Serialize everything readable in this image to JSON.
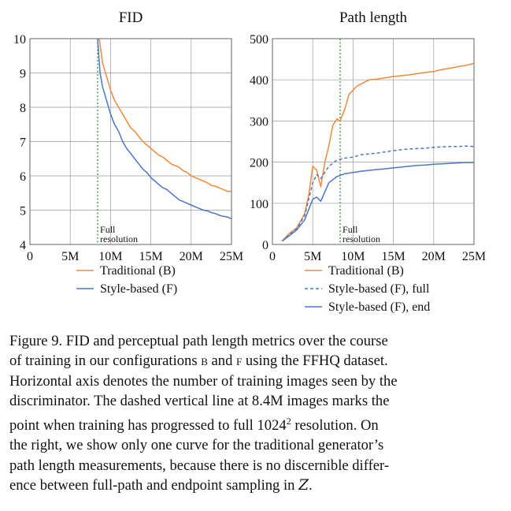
{
  "colors": {
    "traditional": "#ef8a3c",
    "style": "#4a76c9",
    "marker": "#3a9a4a",
    "grid": "#9a9a9a"
  },
  "chart_data": [
    {
      "type": "line",
      "title": "FID",
      "x_ticks": [
        "0",
        "5M",
        "10M",
        "15M",
        "20M",
        "25M"
      ],
      "y_ticks": [
        "4",
        "5",
        "6",
        "7",
        "8",
        "9",
        "10"
      ],
      "xlim": [
        0,
        25
      ],
      "ylim": [
        4,
        10
      ],
      "grid": true,
      "vline": {
        "x": 8.4,
        "label_1": "Full",
        "label_2": "resolution"
      },
      "legend": [
        {
          "label": "Traditional (B)",
          "style": "solid",
          "color": "#ef8a3c"
        },
        {
          "label": "Style-based (F)",
          "style": "solid",
          "color": "#4a76c9"
        }
      ],
      "series": [
        {
          "name": "Traditional (B)",
          "color": "#ef8a3c",
          "dash": "",
          "x": [
            8.6,
            9.0,
            9.5,
            10.0,
            10.5,
            11.0,
            11.5,
            12.0,
            12.5,
            13.0,
            13.5,
            14.0,
            14.5,
            15.0,
            15.5,
            16.0,
            16.5,
            17.0,
            17.5,
            18.0,
            18.5,
            19.0,
            19.5,
            20.0,
            20.5,
            21.0,
            21.5,
            22.0,
            22.5,
            23.0,
            23.5,
            24.0,
            24.5,
            25.0
          ],
          "y": [
            10.0,
            9.3,
            8.9,
            8.5,
            8.2,
            8.0,
            7.8,
            7.6,
            7.4,
            7.3,
            7.15,
            7.0,
            6.9,
            6.8,
            6.7,
            6.6,
            6.55,
            6.45,
            6.35,
            6.3,
            6.25,
            6.15,
            6.1,
            6.0,
            5.95,
            5.9,
            5.85,
            5.8,
            5.72,
            5.7,
            5.65,
            5.6,
            5.55,
            5.55
          ]
        },
        {
          "name": "Style-based (F)",
          "color": "#4a76c9",
          "dash": "",
          "x": [
            8.4,
            8.7,
            9.0,
            9.5,
            10.0,
            10.5,
            11.0,
            11.5,
            12.0,
            12.5,
            13.0,
            13.5,
            14.0,
            14.5,
            15.0,
            15.5,
            16.0,
            16.5,
            17.0,
            17.5,
            18.0,
            18.5,
            19.0,
            19.5,
            20.0,
            20.5,
            21.0,
            21.5,
            22.0,
            22.5,
            23.0,
            23.5,
            24.0,
            24.5,
            25.0
          ],
          "y": [
            10.0,
            9.0,
            8.6,
            8.2,
            7.8,
            7.5,
            7.3,
            7.0,
            6.8,
            6.65,
            6.5,
            6.35,
            6.2,
            6.1,
            5.95,
            5.85,
            5.75,
            5.65,
            5.6,
            5.5,
            5.4,
            5.3,
            5.25,
            5.2,
            5.15,
            5.1,
            5.05,
            5.0,
            4.98,
            4.93,
            4.9,
            4.85,
            4.82,
            4.8,
            4.75
          ]
        }
      ]
    },
    {
      "type": "line",
      "title": "Path length",
      "x_ticks": [
        "0",
        "5M",
        "10M",
        "15M",
        "20M",
        "25M"
      ],
      "y_ticks": [
        "0",
        "100",
        "200",
        "300",
        "400",
        "500"
      ],
      "xlim": [
        0,
        25
      ],
      "ylim": [
        0,
        500
      ],
      "grid": true,
      "vline": {
        "x": 8.4,
        "label_1": "Full",
        "label_2": "resolution"
      },
      "legend": [
        {
          "label": "Traditional (B)",
          "style": "solid",
          "color": "#ef8a3c"
        },
        {
          "label": "Style-based (F), full",
          "style": "dashed",
          "color": "#4a76c9"
        },
        {
          "label": "Style-based (F), end",
          "style": "solid",
          "color": "#4a76c9"
        }
      ],
      "series": [
        {
          "name": "Traditional (B)",
          "color": "#ef8a3c",
          "dash": "",
          "x": [
            1.2,
            2.0,
            3.0,
            4.0,
            4.5,
            5.0,
            5.5,
            6.0,
            6.5,
            7.0,
            7.5,
            8.0,
            8.4,
            9.0,
            9.5,
            10.0,
            10.5,
            11.0,
            12.0,
            13.0,
            14.0,
            15.0,
            16.0,
            17.0,
            18.0,
            19.0,
            20.0,
            21.0,
            22.0,
            23.0,
            24.0,
            25.0
          ],
          "y": [
            8,
            25,
            40,
            75,
            120,
            190,
            180,
            140,
            200,
            240,
            290,
            305,
            300,
            330,
            365,
            375,
            385,
            390,
            400,
            402,
            405,
            408,
            410,
            412,
            415,
            418,
            420,
            425,
            428,
            432,
            435,
            440
          ]
        },
        {
          "name": "Style-based (F), full",
          "color": "#4a76c9",
          "dash": "4 3",
          "x": [
            1.2,
            2.0,
            3.0,
            4.0,
            4.5,
            5.0,
            5.5,
            6.0,
            7.0,
            8.0,
            9.0,
            10.0,
            11.0,
            12.0,
            13.0,
            14.0,
            15.0,
            16.0,
            17.0,
            18.0,
            19.0,
            20.0,
            21.0,
            22.0,
            23.0,
            24.0,
            25.0
          ],
          "y": [
            8,
            22,
            38,
            70,
            110,
            150,
            170,
            160,
            190,
            205,
            210,
            212,
            218,
            220,
            222,
            225,
            228,
            230,
            232,
            233,
            234,
            236,
            237,
            238,
            238,
            239,
            238
          ]
        },
        {
          "name": "Style-based (F), end",
          "color": "#4a76c9",
          "dash": "",
          "x": [
            1.2,
            2.0,
            3.0,
            4.0,
            4.5,
            5.0,
            5.5,
            6.0,
            7.0,
            8.0,
            9.0,
            10.0,
            11.0,
            12.0,
            13.0,
            14.0,
            15.0,
            16.0,
            17.0,
            18.0,
            19.0,
            20.0,
            21.0,
            22.0,
            23.0,
            24.0,
            25.0
          ],
          "y": [
            8,
            20,
            35,
            60,
            85,
            110,
            115,
            105,
            150,
            165,
            172,
            175,
            178,
            180,
            182,
            184,
            186,
            188,
            190,
            192,
            193,
            195,
            196,
            197,
            198,
            199,
            199
          ]
        }
      ]
    }
  ],
  "caption": {
    "line_1": "Figure 9. FID and perceptual path length metrics over the course",
    "line_2a": "of training in our configurations ",
    "line_2b": "b",
    "line_2c": " and ",
    "line_2d": "f",
    "line_2e": " using the FFHQ dataset.",
    "line_3": "Horizontal axis denotes the number of training images seen by the",
    "line_4": "discriminator. The dashed vertical line at 8.4M images marks the",
    "line_5a": "point when training has progressed to full 1024",
    "line_5b": "2",
    "line_5c": " resolution.  On",
    "line_6": "the right, we show only one curve for the traditional generator’s",
    "line_7": "path length measurements, because there is no discernible differ-",
    "line_8a": "ence between full-path and endpoint sampling in ",
    "line_8b": "Z",
    "line_8c": "."
  }
}
